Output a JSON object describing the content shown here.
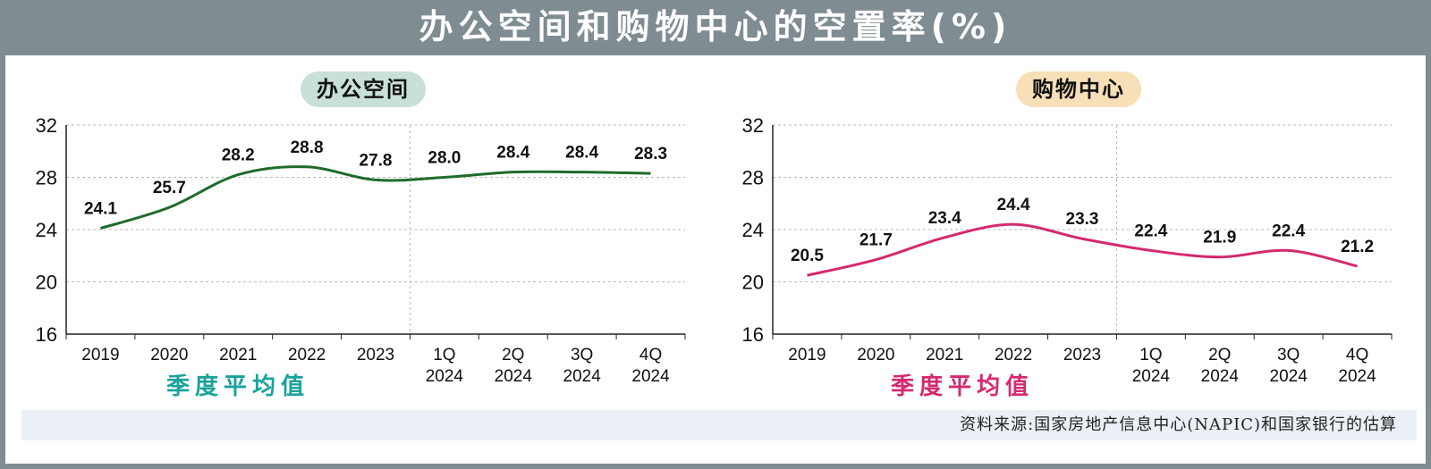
{
  "title": "办公空间和购物中心的空置率(%)",
  "source": "资料来源:国家房地产信息中心(NAPIC)和国家银行的估算",
  "chart_data": [
    {
      "type": "line",
      "title": "办公空间",
      "xlabel": "季度平均值",
      "categories": [
        "2019",
        "2020",
        "2021",
        "2022",
        "2023",
        "1Q\n2024",
        "2Q\n2024",
        "3Q\n2024",
        "4Q\n2024"
      ],
      "values": [
        24.1,
        25.7,
        28.2,
        28.8,
        27.8,
        28.0,
        28.4,
        28.4,
        28.3
      ],
      "value_labels": [
        "24.1",
        "25.7",
        "28.2",
        "28.8",
        "27.8",
        "28.0",
        "28.4",
        "28.4",
        "28.3"
      ],
      "ylim": [
        16,
        32
      ],
      "yticks": [
        "16",
        "20",
        "24",
        "28",
        "32"
      ],
      "grid": true,
      "line_color": "#1f6b2b",
      "pill_color": "#c9e0d8",
      "label_color": "#1aa39a"
    },
    {
      "type": "line",
      "title": "购物中心",
      "xlabel": "季度平均值",
      "categories": [
        "2019",
        "2020",
        "2021",
        "2022",
        "2023",
        "1Q\n2024",
        "2Q\n2024",
        "3Q\n2024",
        "4Q\n2024"
      ],
      "values": [
        20.5,
        21.7,
        23.4,
        24.4,
        23.3,
        22.4,
        21.9,
        22.4,
        21.2
      ],
      "value_labels": [
        "20.5",
        "21.7",
        "23.4",
        "24.4",
        "23.3",
        "22.4",
        "21.9",
        "22.4",
        "21.2"
      ],
      "ylim": [
        16,
        32
      ],
      "yticks": [
        "16",
        "20",
        "24",
        "28",
        "32"
      ],
      "grid": true,
      "line_color": "#d42a6e",
      "pill_color": "#f7dfb8",
      "label_color": "#d42a6e"
    }
  ]
}
